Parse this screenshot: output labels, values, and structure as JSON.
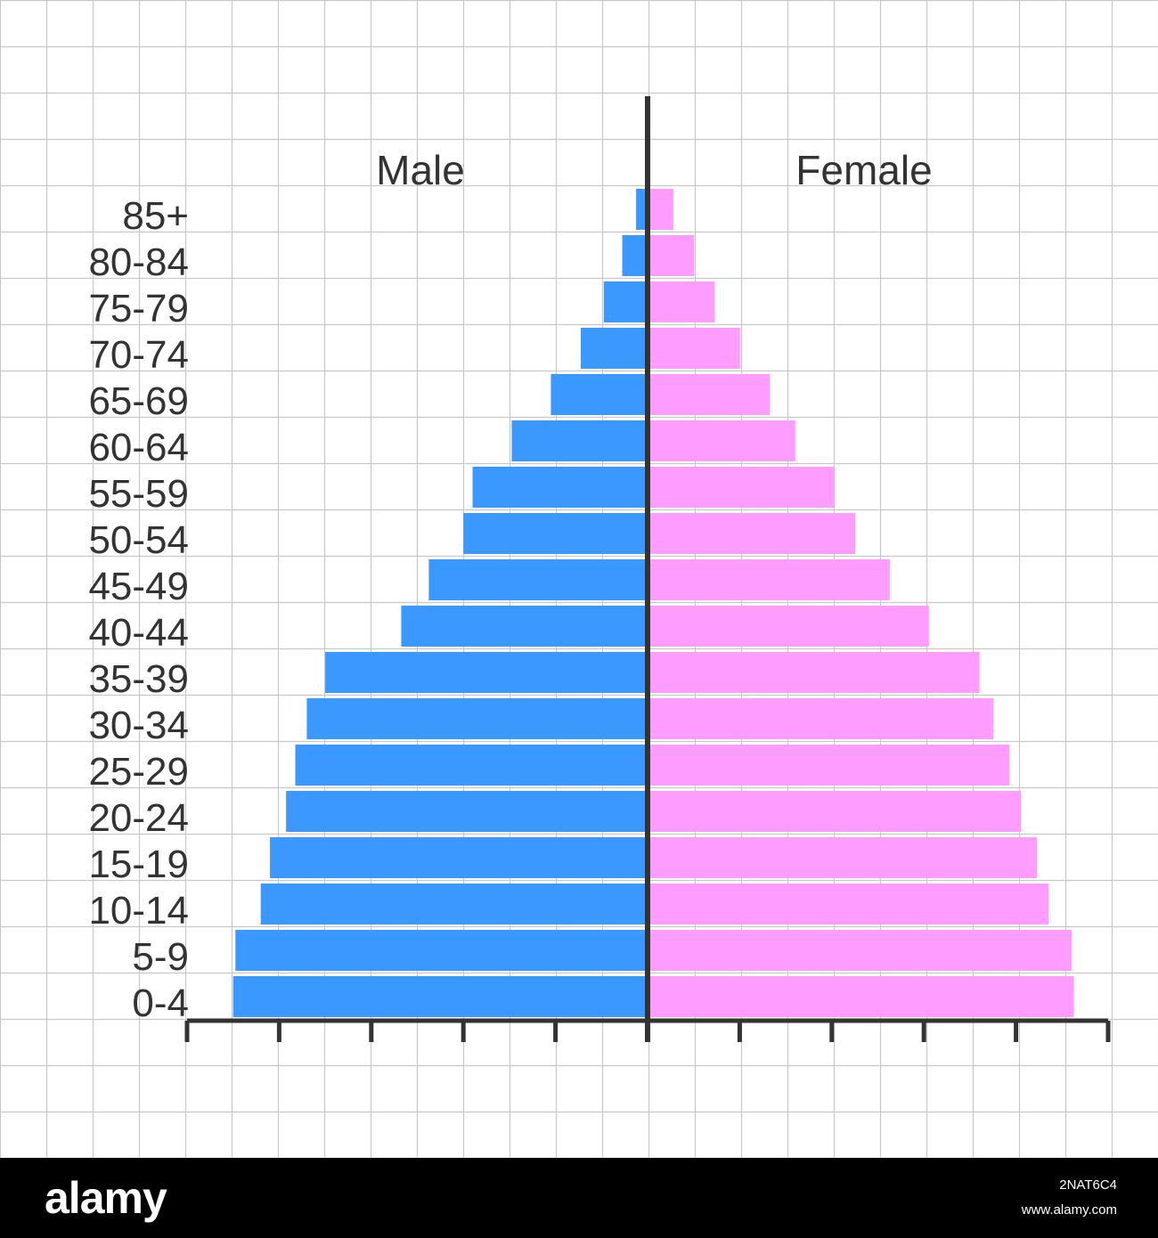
{
  "chart_data": {
    "type": "bar",
    "orientation": "horizontal",
    "layout": "population-pyramid",
    "categories": [
      "85+",
      "80-84",
      "75-79",
      "70-74",
      "65-69",
      "60-64",
      "55-59",
      "50-54",
      "45-49",
      "40-44",
      "35-39",
      "30-34",
      "25-29",
      "20-24",
      "15-19",
      "10-14",
      "5-9",
      "0-4"
    ],
    "series": [
      {
        "name": "Male",
        "side": "left",
        "color": "#3a98ff",
        "values": [
          0.25,
          0.55,
          0.95,
          1.45,
          2.1,
          2.95,
          3.8,
          4.0,
          4.75,
          5.35,
          7.0,
          7.4,
          7.65,
          7.85,
          8.2,
          8.4,
          8.95,
          9.0
        ]
      },
      {
        "name": "Female",
        "side": "right",
        "color": "#ff9cff",
        "values": [
          0.5,
          0.95,
          1.4,
          1.95,
          2.6,
          3.15,
          4.0,
          4.45,
          5.2,
          6.05,
          7.15,
          7.45,
          7.8,
          8.05,
          8.4,
          8.65,
          9.15,
          9.2
        ]
      }
    ],
    "xlim": [
      -10,
      10
    ],
    "x_tick_values": [
      -10,
      -8,
      -6,
      -4,
      -2,
      0,
      2,
      4,
      6,
      8,
      10
    ],
    "x_tick_labels_shown": false,
    "title": "",
    "xlabel": "",
    "ylabel": "",
    "grid": true,
    "grid_color": "#c8c8c8",
    "axis_color": "#333333",
    "text_color": "#333333"
  },
  "footer": {
    "brand": "alamy",
    "image_id": "2NAT6C4",
    "url": "www.alamy.com"
  }
}
